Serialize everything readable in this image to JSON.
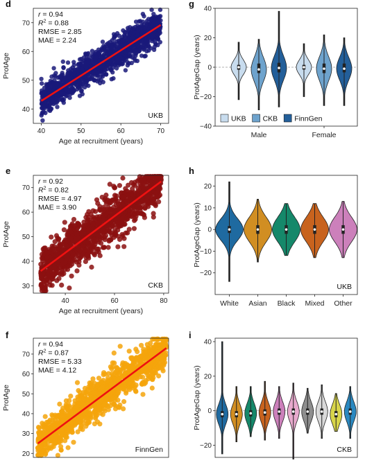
{
  "chart_data": [
    {
      "panel": "d",
      "type": "scatter",
      "xlabel": "Age at recruitment (years)",
      "ylabel": "ProtAge",
      "xlim": [
        38,
        72
      ],
      "ylim": [
        35,
        75
      ],
      "xticks": [
        "40",
        "50",
        "60",
        "70"
      ],
      "yticks": [
        "40",
        "50",
        "60",
        "70"
      ],
      "point_color": "#1a1a7a",
      "fit": {
        "x": [
          40,
          70
        ],
        "y": [
          42.8,
          69.2
        ]
      },
      "stats": {
        "r": "= 0.94",
        "r2": "= 0.88",
        "rmse": "RMSE = 2.85",
        "mae": "MAE = 2.24"
      },
      "label": "UKB"
    },
    {
      "panel": "g",
      "type": "violin",
      "ylabel": "ProtAgeGap (years)",
      "ylim": [
        -40,
        40
      ],
      "yticks": [
        "−40",
        "−20",
        "0",
        "20",
        "40"
      ],
      "categories": [
        "Male",
        "Female"
      ],
      "series": [
        {
          "name": "UKB",
          "color": "#c8dcee"
        },
        {
          "name": "CKB",
          "color": "#6ea3cd"
        },
        {
          "name": "FinnGen",
          "color": "#235f9a"
        }
      ],
      "violins": [
        {
          "group": 0,
          "series": 0,
          "min": -22,
          "max": 17,
          "q1": -1.7,
          "q3": 1.6,
          "median": 0
        },
        {
          "group": 0,
          "series": 1,
          "min": -29,
          "max": 19,
          "q1": -4,
          "q3": 2.5,
          "median": -1.5
        },
        {
          "group": 0,
          "series": 2,
          "min": -27,
          "max": 38,
          "q1": -3.5,
          "q3": 3,
          "median": -0.5
        },
        {
          "group": 1,
          "series": 0,
          "min": -20,
          "max": 16,
          "q1": -1.6,
          "q3": 1.6,
          "median": 0
        },
        {
          "group": 1,
          "series": 1,
          "min": -26,
          "max": 22,
          "q1": -4,
          "q3": 2.5,
          "median": -1
        },
        {
          "group": 1,
          "series": 2,
          "min": -26,
          "max": 20,
          "q1": -3.5,
          "q3": 2.5,
          "median": -1
        }
      ]
    },
    {
      "panel": "e",
      "type": "scatter",
      "xlabel": "Age at recruitment (years)",
      "ylabel": "ProtAge",
      "xlim": [
        27,
        82
      ],
      "ylim": [
        27,
        75
      ],
      "xticks": [
        "40",
        "60",
        "80"
      ],
      "yticks": [
        "30",
        "40",
        "50",
        "60",
        "70"
      ],
      "point_color": "#8b1010",
      "fit": {
        "x": [
          30,
          79
        ],
        "y": [
          36,
          72.5
        ]
      },
      "stats": {
        "r": "= 0.92",
        "r2": "= 0.82",
        "rmse": "RMSE = 4.97",
        "mae": "MAE = 3.90"
      },
      "label": "CKB"
    },
    {
      "panel": "h",
      "type": "violin",
      "ylabel": "ProtAgeGap (years)",
      "ylim": [
        -30,
        25
      ],
      "yticks": [
        "−20",
        "−10",
        "0",
        "10",
        "20"
      ],
      "categories": [
        "White",
        "Asian",
        "Black",
        "Mixed",
        "Other"
      ],
      "colors": [
        "#1f6aa0",
        "#d18e22",
        "#15886a",
        "#c8631e",
        "#cc80bb"
      ],
      "violins": [
        {
          "min": -24,
          "max": 22,
          "q1": -1.6,
          "q3": 1.6,
          "median": 0
        },
        {
          "min": -15,
          "max": 14,
          "q1": -2,
          "q3": 2,
          "median": 0
        },
        {
          "min": -12,
          "max": 12,
          "q1": -2,
          "q3": 2,
          "median": 0
        },
        {
          "min": -13,
          "max": 12,
          "q1": -2,
          "q3": 2,
          "median": 0
        },
        {
          "min": -13,
          "max": 13,
          "q1": -2,
          "q3": 2,
          "median": 0
        }
      ],
      "label": "UKB"
    },
    {
      "panel": "f",
      "type": "scatter",
      "xlabel": "",
      "ylabel": "ProtAge",
      "xlim": [
        20,
        80
      ],
      "ylim": [
        18,
        78
      ],
      "yticks": [
        "20",
        "30",
        "40",
        "50",
        "60",
        "70"
      ],
      "point_color": "#f5a40c",
      "fit": {
        "x": [
          22,
          79
        ],
        "y": [
          25,
          73
        ]
      },
      "stats": {
        "r": "= 0.94",
        "r2": "= 0.87",
        "rmse": "RMSE = 5.33",
        "mae": "MAE = 4.12"
      },
      "label": "FinnGen"
    },
    {
      "panel": "i",
      "type": "violin",
      "ylabel": "ProtAgeGap (years)",
      "ylim": [
        -27,
        42
      ],
      "yticks": [
        "−20",
        "0",
        "20",
        "40"
      ],
      "colors": [
        "#1f6aa0",
        "#d18e22",
        "#15886a",
        "#c8631e",
        "#cc80bb",
        "#e8a9cd",
        "#8e8e8e",
        "#d9d9d9",
        "#d8d54a",
        "#2a88c0"
      ],
      "violins": [
        {
          "min": -25,
          "max": 40,
          "median": -2
        },
        {
          "min": -18,
          "max": 14,
          "median": -2
        },
        {
          "min": -15,
          "max": 14,
          "median": -1.5
        },
        {
          "min": -17,
          "max": 17,
          "median": -1
        },
        {
          "min": -16,
          "max": 14,
          "median": -0.5
        },
        {
          "min": -28,
          "max": 16,
          "median": -0.5
        },
        {
          "min": -13,
          "max": 13,
          "median": -0.5
        },
        {
          "min": -16,
          "max": 15,
          "median": -0.5
        },
        {
          "min": -12,
          "max": 10,
          "median": -2
        },
        {
          "min": -16,
          "max": 14,
          "median": -0.5
        }
      ],
      "label": "CKB"
    }
  ],
  "labels": {
    "r_symbol": "r",
    "r2_symbol": "R",
    "r2_exponent": "2"
  }
}
